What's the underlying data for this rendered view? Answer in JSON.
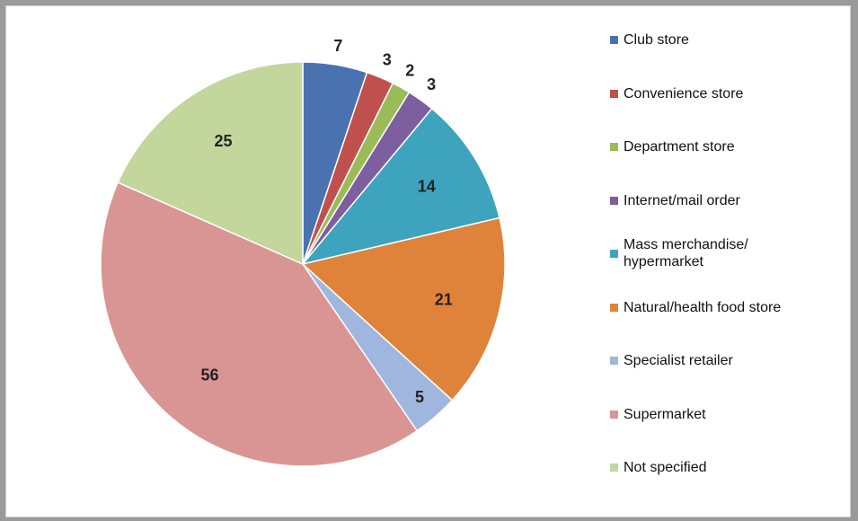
{
  "chart_data": {
    "type": "pie",
    "title": "",
    "start_angle_deg": 0,
    "direction": "clockwise",
    "legend_position": "right",
    "slices": [
      {
        "label": "Club store",
        "value": 7,
        "color": "#4a72b0"
      },
      {
        "label": "Convenience store",
        "value": 3,
        "color": "#c0504d"
      },
      {
        "label": "Department store",
        "value": 2,
        "color": "#9bbb59"
      },
      {
        "label": "Internet/mail order",
        "value": 3,
        "color": "#7d5fa0"
      },
      {
        "label": "Mass merchandise/\nhypermarket",
        "value": 14,
        "color": "#3ea3bd"
      },
      {
        "label": "Natural/health food store",
        "value": 21,
        "color": "#e0833a"
      },
      {
        "label": "Specialist retailer",
        "value": 5,
        "color": "#9fb6de"
      },
      {
        "label": "Supermarket",
        "value": 56,
        "color": "#d99594"
      },
      {
        "label": "Not specified",
        "value": 25,
        "color": "#c3d69b"
      }
    ]
  }
}
